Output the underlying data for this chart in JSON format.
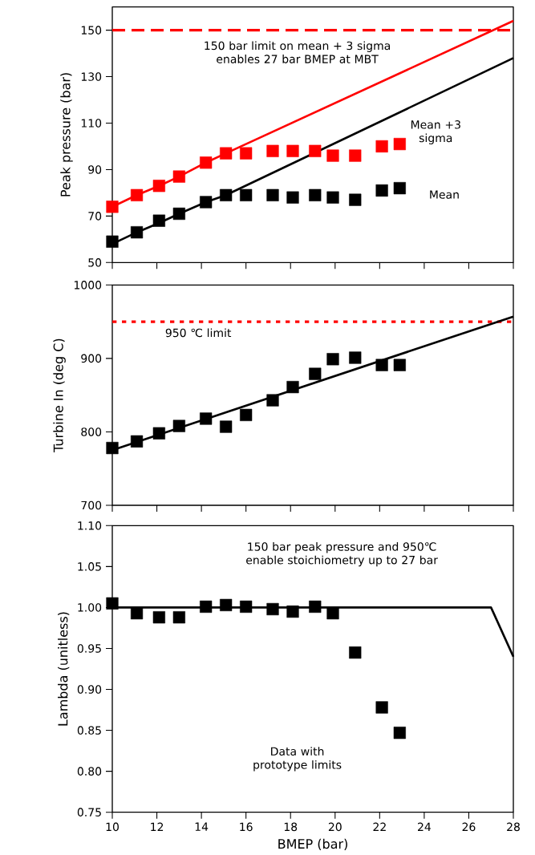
{
  "chart_data": [
    {
      "type": "scatter",
      "ylabel": "Peak pressure (bar)",
      "xlim": [
        10,
        28
      ],
      "xticks": [
        10,
        12,
        14,
        16,
        18,
        20,
        22,
        24,
        26,
        28
      ],
      "ylim": [
        50,
        160
      ],
      "yticks": [
        50,
        70,
        90,
        110,
        130,
        150
      ],
      "tick_labels": "y",
      "ref_lines": [
        {
          "axis": "y",
          "value": 150,
          "label": "150 bar limit on mean + 3 sigma enables 27 bar BMEP at MBT",
          "color": "#ff0000",
          "line_style": "dashed"
        }
      ],
      "series": [
        {
          "type": "line",
          "marker": "none",
          "color": "#ff0000",
          "x": [
            10,
            11.1,
            12.1,
            13,
            14.2,
            15.1,
            28
          ],
          "values": [
            74,
            79,
            83,
            87,
            93,
            97,
            154
          ]
        },
        {
          "type": "line",
          "marker": "none",
          "color": "#000000",
          "x": [
            10,
            11.1,
            12.1,
            13,
            14.2,
            15.1,
            28
          ],
          "values": [
            58,
            63,
            67,
            71,
            76,
            79,
            138
          ]
        },
        {
          "name": "Mean +3 sigma",
          "marker": "square",
          "color": "#ff0000",
          "x": [
            10,
            11.1,
            12.1,
            13,
            14.2,
            15.1,
            16,
            17.2,
            18.1,
            19.1,
            19.9,
            20.9,
            22.1,
            22.9
          ],
          "values": [
            74,
            79,
            83,
            87,
            93,
            97,
            97,
            98,
            98,
            98,
            96,
            96,
            100,
            101
          ]
        },
        {
          "name": "Mean",
          "marker": "square",
          "color": "#000000",
          "x": [
            10,
            11.1,
            12.1,
            13,
            14.2,
            15.1,
            16,
            17.2,
            18.1,
            19.1,
            19.9,
            20.9,
            22.1,
            22.9
          ],
          "values": [
            59,
            63,
            68,
            71,
            76,
            79,
            79,
            79,
            78,
            79,
            78,
            77,
            81,
            82
          ]
        }
      ]
    },
    {
      "type": "scatter",
      "ylabel": "Turbine In (deg C)",
      "xlim": [
        10,
        28
      ],
      "xticks": [
        10,
        12,
        14,
        16,
        18,
        20,
        22,
        24,
        26,
        28
      ],
      "ylim": [
        700,
        1000
      ],
      "yticks": [
        700,
        800,
        900,
        1000
      ],
      "tick_labels": "y",
      "ref_lines": [
        {
          "axis": "y",
          "value": 950,
          "label": "950 ℃ limit",
          "color": "#ff0000",
          "line_style": "dotted"
        }
      ],
      "series": [
        {
          "type": "line",
          "marker": "none",
          "color": "#000000",
          "x": [
            10,
            28
          ],
          "values": [
            775,
            957
          ]
        },
        {
          "marker": "square",
          "color": "#000000",
          "x": [
            10,
            11.1,
            12.1,
            13,
            14.2,
            15.1,
            16,
            17.2,
            18.1,
            19.1,
            19.9,
            20.9,
            22.1,
            22.9
          ],
          "values": [
            778,
            787,
            798,
            808,
            818,
            807,
            823,
            843,
            861,
            879,
            899,
            901,
            891,
            891
          ]
        }
      ]
    },
    {
      "type": "scatter",
      "xlabel": "BMEP (bar)",
      "ylabel": "Lambda (unitless)",
      "xlim": [
        10,
        28
      ],
      "xticks": [
        10,
        12,
        14,
        16,
        18,
        20,
        22,
        24,
        26,
        28
      ],
      "ylim": [
        0.75,
        1.1
      ],
      "yticks": [
        {
          "value": 0.75,
          "label": "0.75"
        },
        {
          "value": 0.8,
          "label": "0.80"
        },
        {
          "value": 0.85,
          "label": "0.85"
        },
        {
          "value": 0.9,
          "label": "0.90"
        },
        {
          "value": 0.95,
          "label": "0.95"
        },
        {
          "value": 1.0,
          "label": "1.00"
        },
        {
          "value": 1.05,
          "label": "1.05"
        },
        {
          "value": 1.1,
          "label": "1.10"
        }
      ],
      "annotations": [
        "150 bar peak pressure and 950℃ enable stoichiometry up to 27 bar",
        "Data with prototype limits"
      ],
      "series": [
        {
          "type": "line",
          "marker": "none",
          "color": "#000000",
          "x": [
            10,
            27,
            28
          ],
          "values": [
            1.0,
            1.0,
            0.94
          ]
        },
        {
          "marker": "square",
          "color": "#000000",
          "x": [
            10,
            11.1,
            12.1,
            13,
            14.2,
            15.1,
            16,
            17.2,
            18.1,
            19.1,
            19.9,
            20.9,
            22.1,
            22.9
          ],
          "values": [
            1.005,
            0.993,
            0.988,
            0.988,
            1.001,
            1.003,
            1.001,
            0.998,
            0.995,
            1.001,
            0.993,
            0.945,
            0.878,
            0.847
          ]
        }
      ]
    }
  ]
}
